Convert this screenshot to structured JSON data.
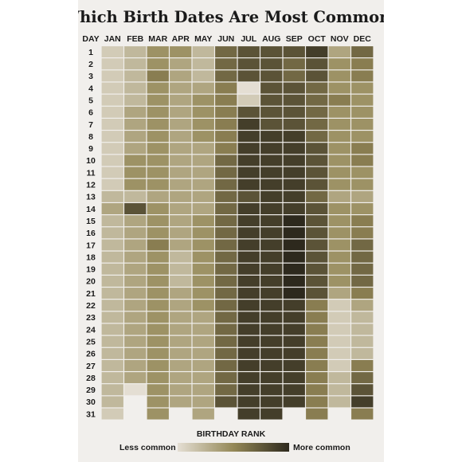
{
  "chart_data": {
    "type": "heatmap",
    "title": "Which Birth Dates Are Most Common?",
    "row_header": "DAY",
    "columns": [
      "JAN",
      "FEB",
      "MAR",
      "APR",
      "MAY",
      "JUN",
      "JUL",
      "AUG",
      "SEP",
      "OCT",
      "NOV",
      "DEC"
    ],
    "rows": [
      "1",
      "2",
      "3",
      "4",
      "5",
      "6",
      "7",
      "8",
      "9",
      "10",
      "11",
      "12",
      "13",
      "14",
      "15",
      "16",
      "17",
      "18",
      "19",
      "20",
      "21",
      "22",
      "23",
      "24",
      "25",
      "26",
      "27",
      "28",
      "29",
      "30",
      "31"
    ],
    "value_scale": "1 = less common, 10 = more common",
    "values": [
      [
        2,
        3,
        5,
        5,
        3,
        7,
        8,
        8,
        8,
        9,
        4,
        7
      ],
      [
        2,
        3,
        5,
        4,
        3,
        7,
        8,
        8,
        7,
        8,
        5,
        6
      ],
      [
        2,
        3,
        6,
        4,
        3,
        7,
        8,
        8,
        7,
        8,
        5,
        6
      ],
      [
        2,
        3,
        5,
        4,
        4,
        6,
        1,
        8,
        8,
        7,
        5,
        5
      ],
      [
        2,
        3,
        5,
        4,
        5,
        6,
        2,
        8,
        8,
        7,
        6,
        5
      ],
      [
        2,
        4,
        5,
        4,
        5,
        6,
        8,
        8,
        8,
        7,
        5,
        5
      ],
      [
        2,
        4,
        5,
        4,
        5,
        6,
        9,
        8,
        8,
        7,
        5,
        5
      ],
      [
        2,
        4,
        5,
        4,
        5,
        6,
        9,
        9,
        9,
        7,
        5,
        5
      ],
      [
        2,
        4,
        5,
        4,
        4,
        6,
        9,
        9,
        9,
        8,
        5,
        6
      ],
      [
        2,
        5,
        5,
        4,
        4,
        7,
        9,
        9,
        9,
        8,
        5,
        6
      ],
      [
        2,
        5,
        5,
        4,
        4,
        7,
        9,
        9,
        9,
        8,
        5,
        5
      ],
      [
        2,
        5,
        5,
        4,
        4,
        7,
        9,
        9,
        9,
        8,
        5,
        5
      ],
      [
        3,
        3,
        4,
        4,
        4,
        7,
        8,
        9,
        9,
        7,
        4,
        4
      ],
      [
        4,
        8,
        5,
        4,
        4,
        7,
        9,
        9,
        9,
        8,
        5,
        5
      ],
      [
        3,
        4,
        5,
        4,
        5,
        7,
        9,
        9,
        10,
        8,
        5,
        6
      ],
      [
        3,
        4,
        5,
        4,
        5,
        7,
        9,
        9,
        10,
        8,
        5,
        6
      ],
      [
        3,
        4,
        6,
        4,
        5,
        7,
        9,
        9,
        10,
        8,
        5,
        7
      ],
      [
        3,
        4,
        5,
        3,
        5,
        7,
        9,
        9,
        10,
        8,
        5,
        7
      ],
      [
        3,
        4,
        5,
        3,
        5,
        7,
        9,
        9,
        10,
        8,
        5,
        7
      ],
      [
        3,
        4,
        5,
        3,
        5,
        7,
        9,
        9,
        10,
        8,
        5,
        7
      ],
      [
        3,
        4,
        5,
        4,
        5,
        7,
        9,
        9,
        10,
        8,
        4,
        6
      ],
      [
        3,
        4,
        5,
        4,
        5,
        7,
        9,
        9,
        9,
        6,
        2,
        4
      ],
      [
        3,
        4,
        5,
        4,
        4,
        7,
        9,
        9,
        9,
        6,
        2,
        3
      ],
      [
        3,
        4,
        5,
        4,
        4,
        7,
        9,
        9,
        9,
        6,
        2,
        3
      ],
      [
        3,
        4,
        5,
        4,
        4,
        7,
        9,
        9,
        9,
        6,
        2,
        3
      ],
      [
        3,
        4,
        5,
        4,
        4,
        7,
        9,
        9,
        9,
        6,
        2,
        3
      ],
      [
        3,
        4,
        5,
        4,
        4,
        7,
        9,
        9,
        9,
        6,
        2,
        6
      ],
      [
        3,
        4,
        5,
        4,
        4,
        7,
        9,
        9,
        9,
        6,
        3,
        7
      ],
      [
        3,
        1,
        5,
        4,
        4,
        7,
        9,
        9,
        9,
        6,
        3,
        8
      ],
      [
        3,
        null,
        5,
        4,
        4,
        8,
        9,
        9,
        9,
        6,
        3,
        9
      ],
      [
        2,
        null,
        5,
        null,
        4,
        null,
        9,
        9,
        null,
        6,
        null,
        6
      ]
    ],
    "legend": {
      "title": "BIRTHDAY RANK",
      "low_label": "Less common",
      "high_label": "More common",
      "position": "bottom-center"
    },
    "colors": {
      "low": "#e4ded3",
      "mid": "#948857",
      "high": "#2d291d",
      "background": "#f1efec",
      "text": "#1a1a1a",
      "gridline": "#ffffff"
    }
  }
}
